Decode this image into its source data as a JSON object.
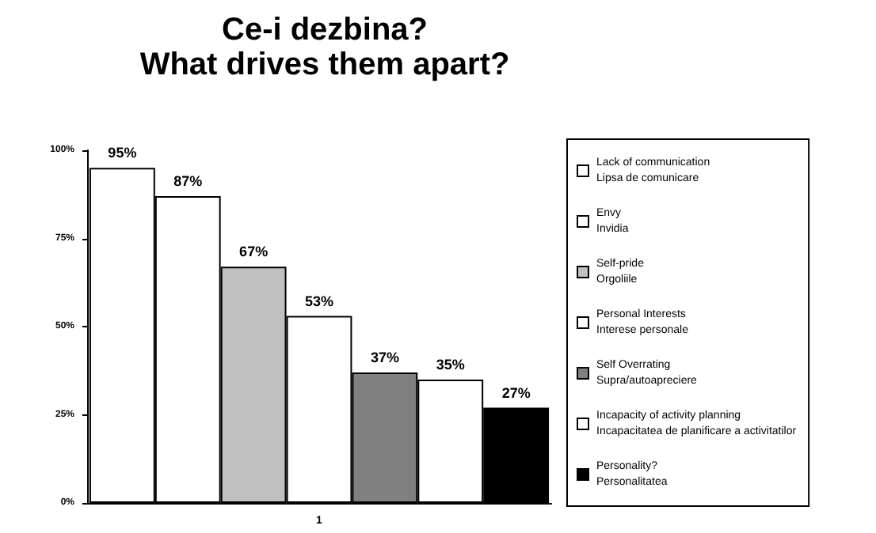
{
  "chart_data": {
    "type": "bar",
    "title": "Ce-i dezbina?",
    "subtitle": "What drives them apart?",
    "categories": [
      "1"
    ],
    "series": [
      {
        "name": "Lack of communication\nLipsa de comunicare",
        "color": "#ffffff",
        "values": [
          95
        ],
        "value_labels": [
          "95%"
        ]
      },
      {
        "name": "Envy\nInvidia",
        "color": "#ffffff",
        "values": [
          87
        ],
        "value_labels": [
          "87%"
        ]
      },
      {
        "name": "Self-pride\nOrgoliile",
        "color": "#c0c0c0",
        "values": [
          67
        ],
        "value_labels": [
          "67%"
        ]
      },
      {
        "name": "Personal Interests\nInterese personale",
        "color": "#ffffff",
        "values": [
          53
        ],
        "value_labels": [
          "53%"
        ]
      },
      {
        "name": "Self Overrating\nSupra/autoapreciere",
        "color": "#808080",
        "values": [
          37
        ],
        "value_labels": [
          "37%"
        ]
      },
      {
        "name": "Incapacity of activity planning\nIncapacitatea de planificare a activitatilor",
        "color": "#ffffff",
        "values": [
          35
        ],
        "value_labels": [
          "35%"
        ]
      },
      {
        "name": "Personality?\nPersonalitatea",
        "color": "#000000",
        "values": [
          27
        ],
        "value_labels": [
          "27%"
        ]
      }
    ],
    "ylim": [
      0,
      100
    ],
    "yticks": [
      {
        "value": 0,
        "label": "0%"
      },
      {
        "value": 25,
        "label": "25%"
      },
      {
        "value": 50,
        "label": "50%"
      },
      {
        "value": 75,
        "label": "75%"
      },
      {
        "value": 100,
        "label": "100%"
      }
    ],
    "grid": false,
    "legend": "right"
  }
}
